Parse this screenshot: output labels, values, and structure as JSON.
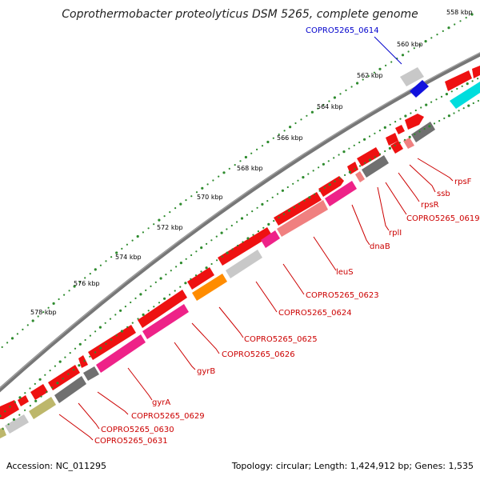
{
  "title": "Coprothermobacter proteolyticus DSM 5265, complete genome",
  "accession": "Accession: NC_011295",
  "summary": "Topology: circular; Length: 1,424,912 bp; Genes: 1,535",
  "ticks": [
    "558 kbp",
    "560 kbp",
    "562 kbp",
    "564 kbp",
    "566 kbp",
    "568 kbp",
    "570 kbp",
    "572 kbp",
    "574 kbp",
    "576 kbp",
    "578 kbp"
  ],
  "labels": [
    {
      "text": "COPRO5265_0614",
      "color": "blue"
    },
    {
      "text": "rpsF",
      "color": "red"
    },
    {
      "text": "ssb",
      "color": "red"
    },
    {
      "text": "rpsR",
      "color": "red"
    },
    {
      "text": "COPRO5265_0619",
      "color": "red"
    },
    {
      "text": "rplI",
      "color": "red"
    },
    {
      "text": "dnaB",
      "color": "red"
    },
    {
      "text": "leuS",
      "color": "red"
    },
    {
      "text": "COPRO5265_0623",
      "color": "red"
    },
    {
      "text": "COPRO5265_0624",
      "color": "red"
    },
    {
      "text": "COPRO5265_0625",
      "color": "red"
    },
    {
      "text": "COPRO5265_0626",
      "color": "red"
    },
    {
      "text": "gyrB",
      "color": "red"
    },
    {
      "text": "gyrA",
      "color": "red"
    },
    {
      "text": "COPRO5265_0629",
      "color": "red"
    },
    {
      "text": "COPRO5265_0630",
      "color": "red"
    },
    {
      "text": "COPRO5265_0631",
      "color": "red"
    }
  ],
  "colors": {
    "cds": "#ee1111",
    "cds_dark": "#b00000",
    "backbone": "#777777",
    "tick": "#2e8b2e",
    "pink": "#ee2288",
    "salmon": "#f08080",
    "grey": "#707070",
    "lightgrey": "#c8c8c8",
    "orange": "#ff8c00",
    "olive": "#bdb76b",
    "blue": "#1111dd",
    "cyan": "#00dddd"
  }
}
